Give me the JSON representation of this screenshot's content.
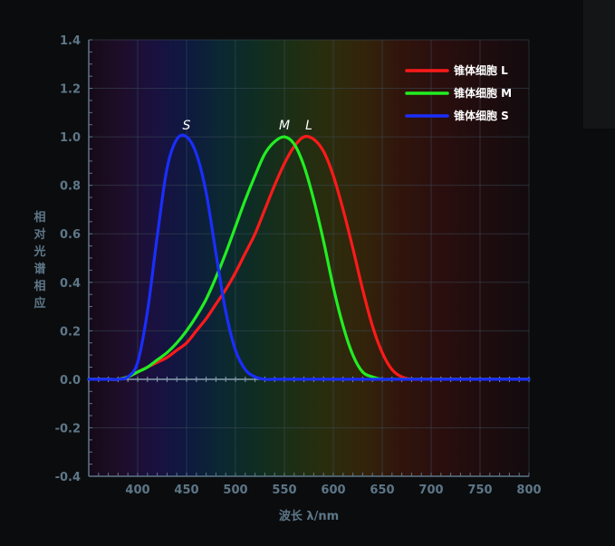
{
  "chart_data": {
    "type": "line",
    "title": "",
    "xlabel": "波长 λ/nm",
    "ylabel": "相对光谱相应",
    "xlim": [
      350,
      800
    ],
    "ylim": [
      -0.4,
      1.4
    ],
    "x_ticks": [
      "400",
      "450",
      "500",
      "550",
      "600",
      "650",
      "700",
      "750",
      "800"
    ],
    "y_ticks": [
      "1.4",
      "1.2",
      "1.0",
      "0.8",
      "0.6",
      "0.4",
      "0.2",
      "0.0",
      "-0.2",
      "-0.4"
    ],
    "grid": true,
    "background": "visible spectrum gradient",
    "legend_position": "top-right",
    "x": [
      350,
      360,
      370,
      380,
      390,
      400,
      410,
      420,
      430,
      440,
      450,
      460,
      470,
      480,
      490,
      500,
      510,
      520,
      530,
      540,
      550,
      560,
      570,
      580,
      590,
      600,
      610,
      620,
      630,
      640,
      650,
      660,
      670,
      680,
      690,
      700,
      710,
      720,
      730,
      740,
      750,
      760,
      770,
      780,
      790,
      800
    ],
    "series": [
      {
        "name": "锥体细胞 L",
        "color": "#ff1a1a",
        "peak_label": "L",
        "peak_x": 575,
        "values": [
          0,
          0,
          0,
          0,
          0.01,
          0.03,
          0.05,
          0.07,
          0.09,
          0.12,
          0.15,
          0.2,
          0.25,
          0.31,
          0.37,
          0.44,
          0.52,
          0.6,
          0.7,
          0.8,
          0.89,
          0.96,
          1.0,
          0.99,
          0.94,
          0.84,
          0.7,
          0.54,
          0.37,
          0.22,
          0.11,
          0.04,
          0.01,
          0,
          0,
          0,
          0,
          0,
          0,
          0,
          0,
          0,
          0,
          0,
          0,
          0
        ]
      },
      {
        "name": "锥体细胞 M",
        "color": "#22ee22",
        "peak_label": "M",
        "peak_x": 550,
        "values": [
          0,
          0,
          0,
          0,
          0.01,
          0.03,
          0.05,
          0.08,
          0.11,
          0.15,
          0.2,
          0.26,
          0.33,
          0.42,
          0.52,
          0.63,
          0.74,
          0.84,
          0.93,
          0.98,
          1.0,
          0.97,
          0.88,
          0.74,
          0.57,
          0.38,
          0.22,
          0.1,
          0.03,
          0.01,
          0,
          0,
          0,
          0,
          0,
          0,
          0,
          0,
          0,
          0,
          0,
          0,
          0,
          0,
          0,
          0
        ]
      },
      {
        "name": "锥体细胞 S",
        "color": "#1a2eff",
        "peak_label": "S",
        "peak_x": 450,
        "values": [
          0,
          0,
          0,
          0,
          0.01,
          0.07,
          0.28,
          0.59,
          0.87,
          0.99,
          1.0,
          0.93,
          0.77,
          0.52,
          0.28,
          0.12,
          0.04,
          0.01,
          0,
          0,
          0,
          0,
          0,
          0,
          0,
          0,
          0,
          0,
          0,
          0,
          0,
          0,
          0,
          0,
          0,
          0,
          0,
          0,
          0,
          0,
          0,
          0,
          0,
          0,
          0,
          0
        ]
      }
    ]
  }
}
